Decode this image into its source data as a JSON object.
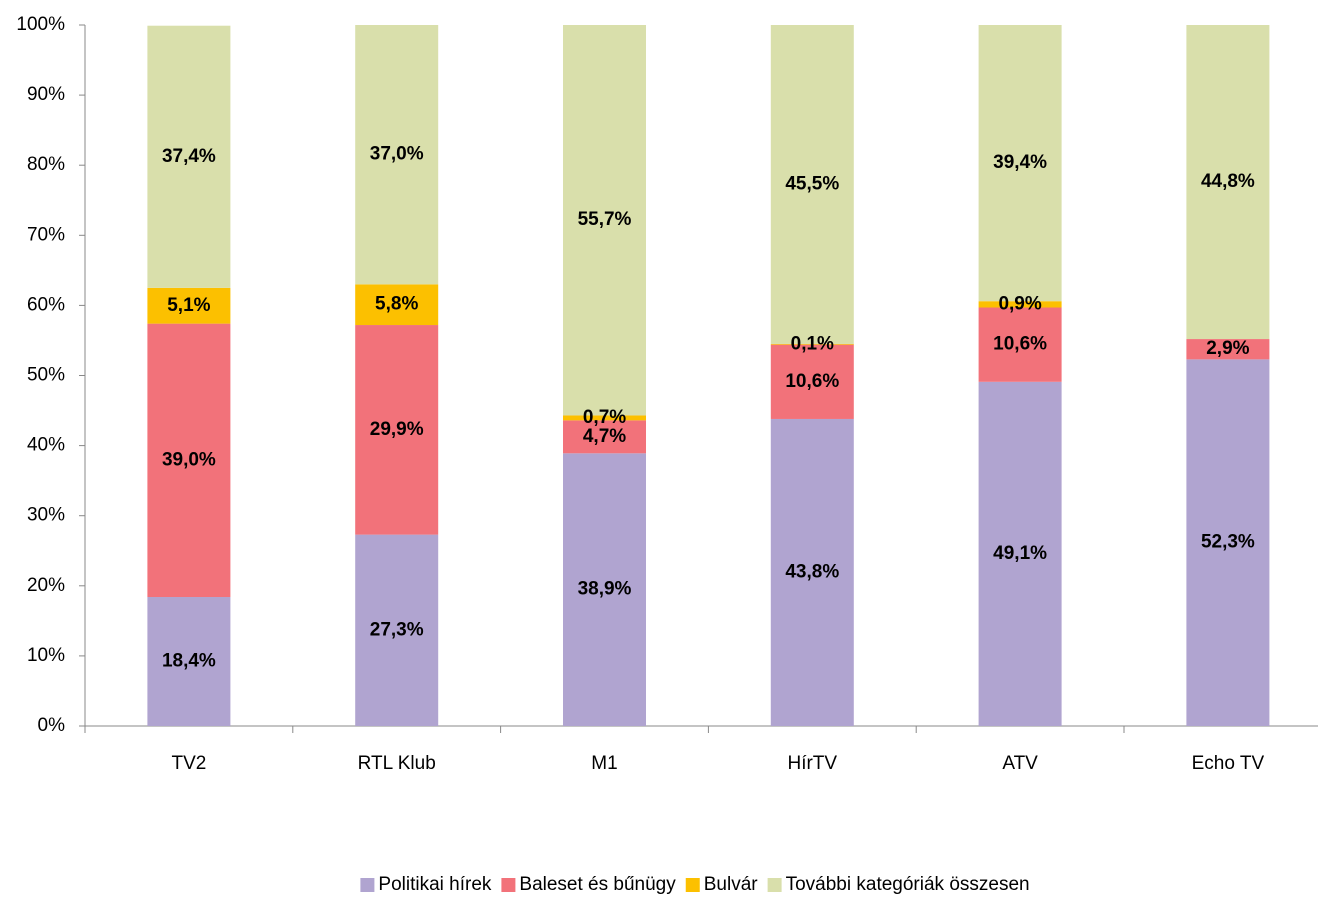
{
  "chart_data": {
    "type": "stacked_bar",
    "categories": [
      "TV2",
      "RTL Klub",
      "M1",
      "HírTV",
      "ATV",
      "Echo TV"
    ],
    "series": [
      {
        "name": "Politikai hírek",
        "color": "#b0a4d0",
        "values": [
          18.4,
          27.3,
          38.9,
          43.8,
          49.1,
          52.3
        ],
        "value_labels": [
          "18,4%",
          "27,3%",
          "38,9%",
          "43,8%",
          "49,1%",
          "52,3%"
        ]
      },
      {
        "name": "Baleset és bűnügy",
        "color": "#f2727a",
        "values": [
          39.0,
          29.9,
          4.7,
          10.6,
          10.6,
          2.9
        ],
        "value_labels": [
          "39,0%",
          "29,9%",
          "4,7%",
          "10,6%",
          "10,6%",
          "2,9%"
        ]
      },
      {
        "name": "Bulvár",
        "color": "#fcc000",
        "values": [
          5.1,
          5.8,
          0.7,
          0.1,
          0.9,
          null
        ],
        "value_labels": [
          "5,1%",
          "5,8%",
          "0,7%",
          "0,1%",
          "0,9%",
          null
        ]
      },
      {
        "name": "További kategóriák összesen",
        "color": "#d9dfab",
        "values": [
          37.4,
          37.0,
          55.7,
          45.5,
          39.4,
          44.8
        ],
        "value_labels": [
          "37,4%",
          "37,0%",
          "55,7%",
          "45,5%",
          "39,4%",
          "44,8%"
        ]
      }
    ],
    "ylim": [
      0,
      100
    ],
    "yticks": [
      {
        "value": 0,
        "label": "0%"
      },
      {
        "value": 10,
        "label": "10%"
      },
      {
        "value": 20,
        "label": "20%"
      },
      {
        "value": 30,
        "label": "30%"
      },
      {
        "value": 40,
        "label": "40%"
      },
      {
        "value": 50,
        "label": "50%"
      },
      {
        "value": 60,
        "label": "60%"
      },
      {
        "value": 70,
        "label": "70%"
      },
      {
        "value": 80,
        "label": "80%"
      },
      {
        "value": 90,
        "label": "90%"
      },
      {
        "value": 100,
        "label": "100%"
      }
    ],
    "legend": "bottom",
    "grid": false
  }
}
